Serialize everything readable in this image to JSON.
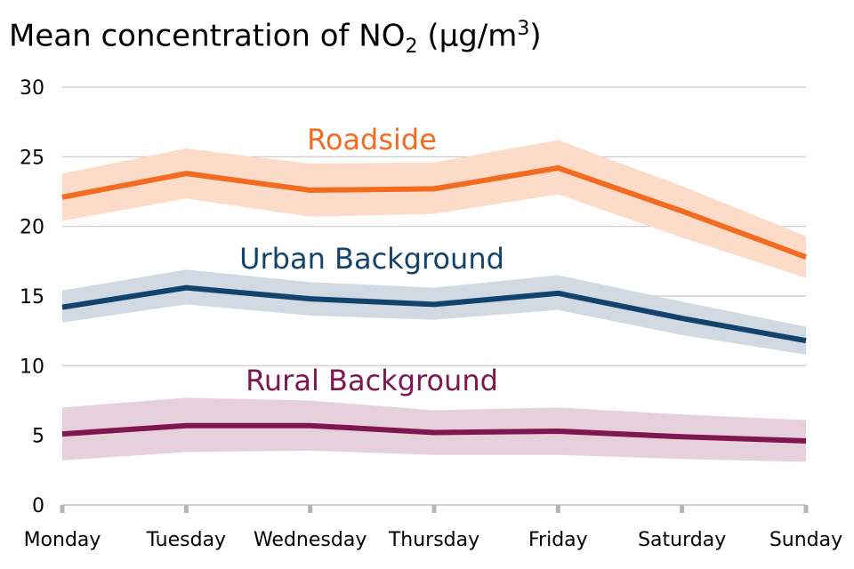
{
  "title": {
    "prefix": "Mean concentration of NO",
    "subscript": "2",
    "middle": " (μg/m",
    "superscript": "3",
    "suffix": ")"
  },
  "chart_data": {
    "type": "line",
    "categories": [
      "Monday",
      "Tuesday",
      "Wednesday",
      "Thursday",
      "Friday",
      "Saturday",
      "Sunday"
    ],
    "ylim": [
      0,
      30
    ],
    "yticks": [
      0,
      5,
      10,
      15,
      20,
      25,
      30
    ],
    "grid": true,
    "legend": "inline labels",
    "series": [
      {
        "name": "Roadside",
        "color": "#f26b21",
        "band_color": "#fcdcc8",
        "values": [
          22.1,
          23.8,
          22.6,
          22.7,
          24.2,
          21.1,
          17.8
        ],
        "lower": [
          20.4,
          22.0,
          20.7,
          20.9,
          22.3,
          19.2,
          16.3
        ],
        "upper": [
          23.8,
          25.6,
          24.5,
          24.6,
          26.2,
          22.9,
          19.3
        ]
      },
      {
        "name": "Urban Background",
        "color": "#12436d",
        "band_color": "#d1d9e2",
        "values": [
          14.2,
          15.6,
          14.8,
          14.4,
          15.2,
          13.4,
          11.8
        ],
        "lower": [
          13.1,
          14.4,
          13.6,
          13.3,
          14.0,
          12.2,
          10.8
        ],
        "upper": [
          15.4,
          16.9,
          16.0,
          15.6,
          16.5,
          14.6,
          12.8
        ]
      },
      {
        "name": "Rural Background",
        "color": "#801650",
        "band_color": "#e6d0db",
        "values": [
          5.1,
          5.7,
          5.7,
          5.2,
          5.3,
          4.9,
          4.6
        ],
        "lower": [
          3.2,
          3.8,
          3.9,
          3.6,
          3.6,
          3.3,
          3.1
        ],
        "upper": [
          7.0,
          7.7,
          7.5,
          6.8,
          7.0,
          6.5,
          6.1
        ]
      }
    ]
  }
}
